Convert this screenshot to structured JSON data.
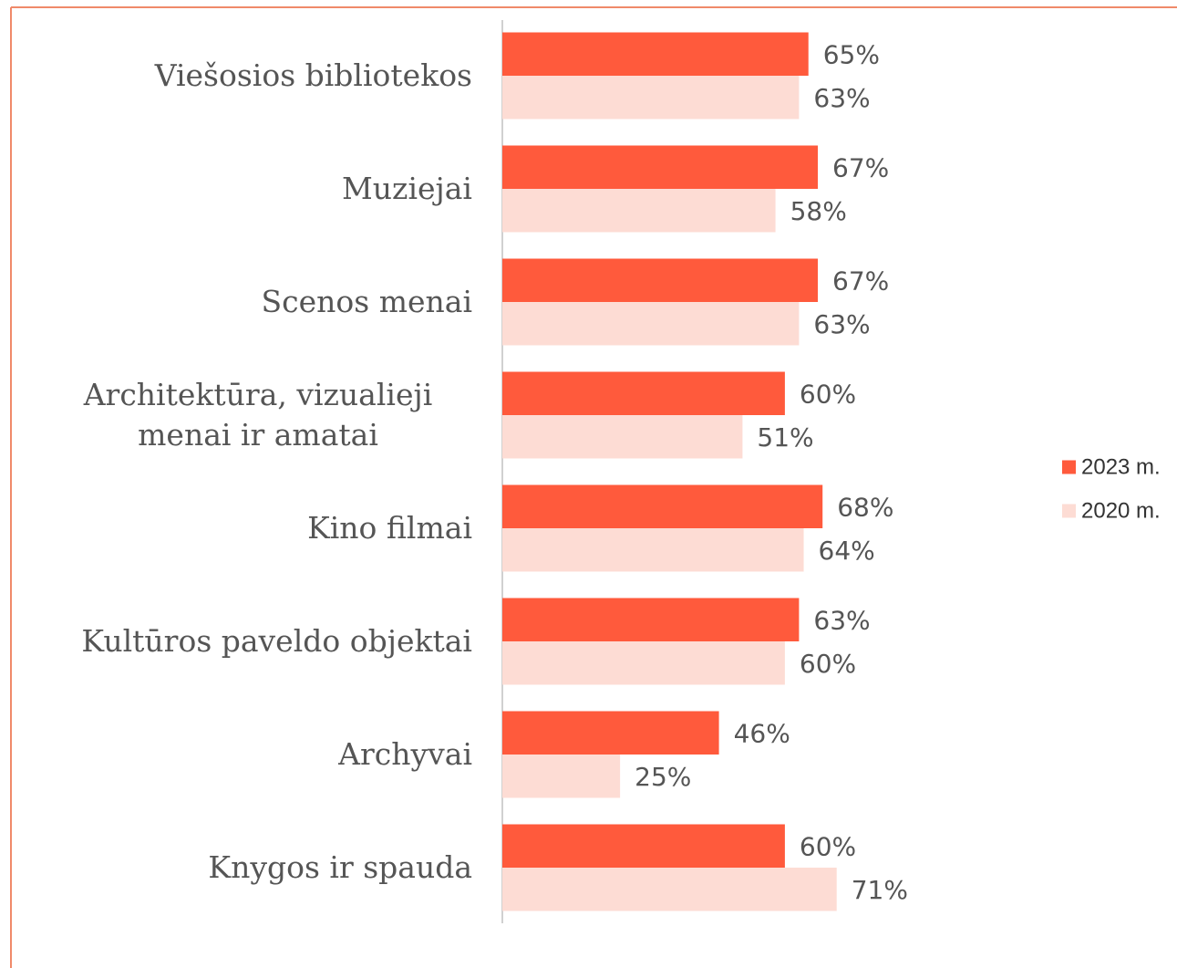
{
  "chart_data": {
    "type": "bar",
    "orientation": "horizontal",
    "categories": [
      "Viešosios bibliotekos",
      "Muziejai",
      "Scenos menai",
      "Architektūra, vizualieji menai ir amatai",
      "Kino filmai",
      "Kultūros paveldo objektai",
      "Archyvai",
      "Knygos ir spauda"
    ],
    "series": [
      {
        "name": "2023 m.",
        "color": "#ff5a3c",
        "values": [
          65,
          67,
          67,
          60,
          68,
          63,
          46,
          60
        ],
        "value_labels": [
          "65%",
          "67%",
          "67%",
          "60%",
          "68%",
          "63%",
          "46%",
          "60%"
        ]
      },
      {
        "name": "2020 m.",
        "color": "#fddcd4",
        "values": [
          63,
          58,
          63,
          51,
          64,
          60,
          25,
          71
        ],
        "value_labels": [
          "63%",
          "58%",
          "63%",
          "51%",
          "64%",
          "60%",
          "25%",
          "71%"
        ]
      }
    ],
    "xlim": [
      0,
      100
    ],
    "legend": "right"
  }
}
